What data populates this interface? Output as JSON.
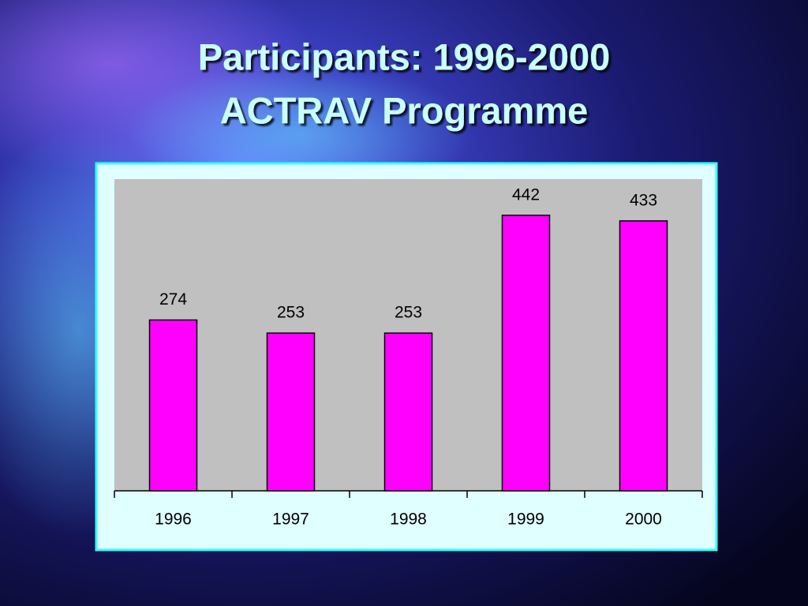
{
  "chart_data": {
    "type": "bar",
    "title": "Participants: 1996-2000",
    "subtitle": "ACTRAV Programme",
    "categories": [
      "1996",
      "1997",
      "1998",
      "1999",
      "2000"
    ],
    "values": [
      274,
      253,
      253,
      442,
      433
    ],
    "color": "#ff00ff",
    "ylim": [
      0,
      500
    ]
  }
}
